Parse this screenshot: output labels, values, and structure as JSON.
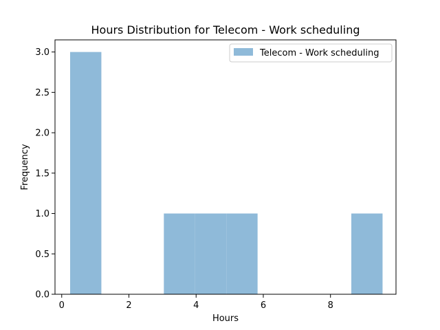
{
  "chart_data": {
    "type": "bar",
    "title": "Hours Distribution for Telecom - Work scheduling",
    "xlabel": "Hours",
    "ylabel": "Frequency",
    "xlim": [
      -0.2,
      9.95
    ],
    "ylim": [
      0,
      3.15
    ],
    "xticks": [
      0,
      2,
      4,
      6,
      8
    ],
    "xtick_labels": [
      "0",
      "2",
      "4",
      "6",
      "8"
    ],
    "yticks": [
      0,
      0.5,
      1.0,
      1.5,
      2.0,
      2.5,
      3.0
    ],
    "ytick_labels": [
      "0.0",
      "0.5",
      "1.0",
      "1.5",
      "2.0",
      "2.5",
      "3.0"
    ],
    "grid": false,
    "legend_position": "top-right",
    "bar_color": "#8fbad9",
    "series": [
      {
        "name": "Telecom - Work scheduling",
        "bins": [
          {
            "x0": 0.25,
            "x1": 1.18,
            "count": 3
          },
          {
            "x0": 1.18,
            "x1": 2.11,
            "count": 0
          },
          {
            "x0": 2.11,
            "x1": 3.04,
            "count": 0
          },
          {
            "x0": 3.04,
            "x1": 3.97,
            "count": 1
          },
          {
            "x0": 3.97,
            "x1": 4.9,
            "count": 1
          },
          {
            "x0": 4.9,
            "x1": 5.83,
            "count": 1
          },
          {
            "x0": 5.83,
            "x1": 6.76,
            "count": 0
          },
          {
            "x0": 6.76,
            "x1": 7.69,
            "count": 0
          },
          {
            "x0": 7.69,
            "x1": 8.62,
            "count": 0
          },
          {
            "x0": 8.62,
            "x1": 9.55,
            "count": 1
          }
        ]
      }
    ]
  }
}
